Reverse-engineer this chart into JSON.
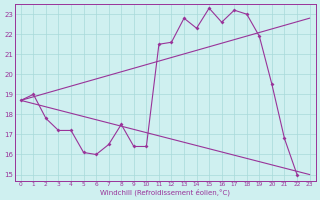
{
  "xlabel": "Windchill (Refroidissement éolien,°C)",
  "bg_color": "#cff0f0",
  "grid_color": "#a8dada",
  "line_color": "#993399",
  "xlim": [
    -0.5,
    23.5
  ],
  "ylim": [
    14.7,
    23.5
  ],
  "xticks": [
    0,
    1,
    2,
    3,
    4,
    5,
    6,
    7,
    8,
    9,
    10,
    11,
    12,
    13,
    14,
    15,
    16,
    17,
    18,
    19,
    20,
    21,
    22,
    23
  ],
  "yticks": [
    15,
    16,
    17,
    18,
    19,
    20,
    21,
    22,
    23
  ],
  "series1_x": [
    0,
    1,
    2,
    3,
    4,
    5,
    6,
    7,
    8,
    9,
    10,
    11,
    12,
    13,
    14,
    15,
    16,
    17,
    18,
    19,
    20,
    21,
    22
  ],
  "series1_y": [
    18.7,
    19.0,
    17.8,
    17.2,
    17.2,
    16.1,
    16.0,
    16.5,
    17.5,
    16.4,
    16.4,
    21.5,
    21.6,
    22.8,
    22.3,
    23.3,
    22.6,
    23.2,
    23.0,
    21.9,
    19.5,
    16.8,
    15.0
  ],
  "series2_x": [
    0,
    23
  ],
  "series2_y": [
    18.7,
    22.8
  ],
  "series3_x": [
    0,
    23
  ],
  "series3_y": [
    18.7,
    15.0
  ]
}
